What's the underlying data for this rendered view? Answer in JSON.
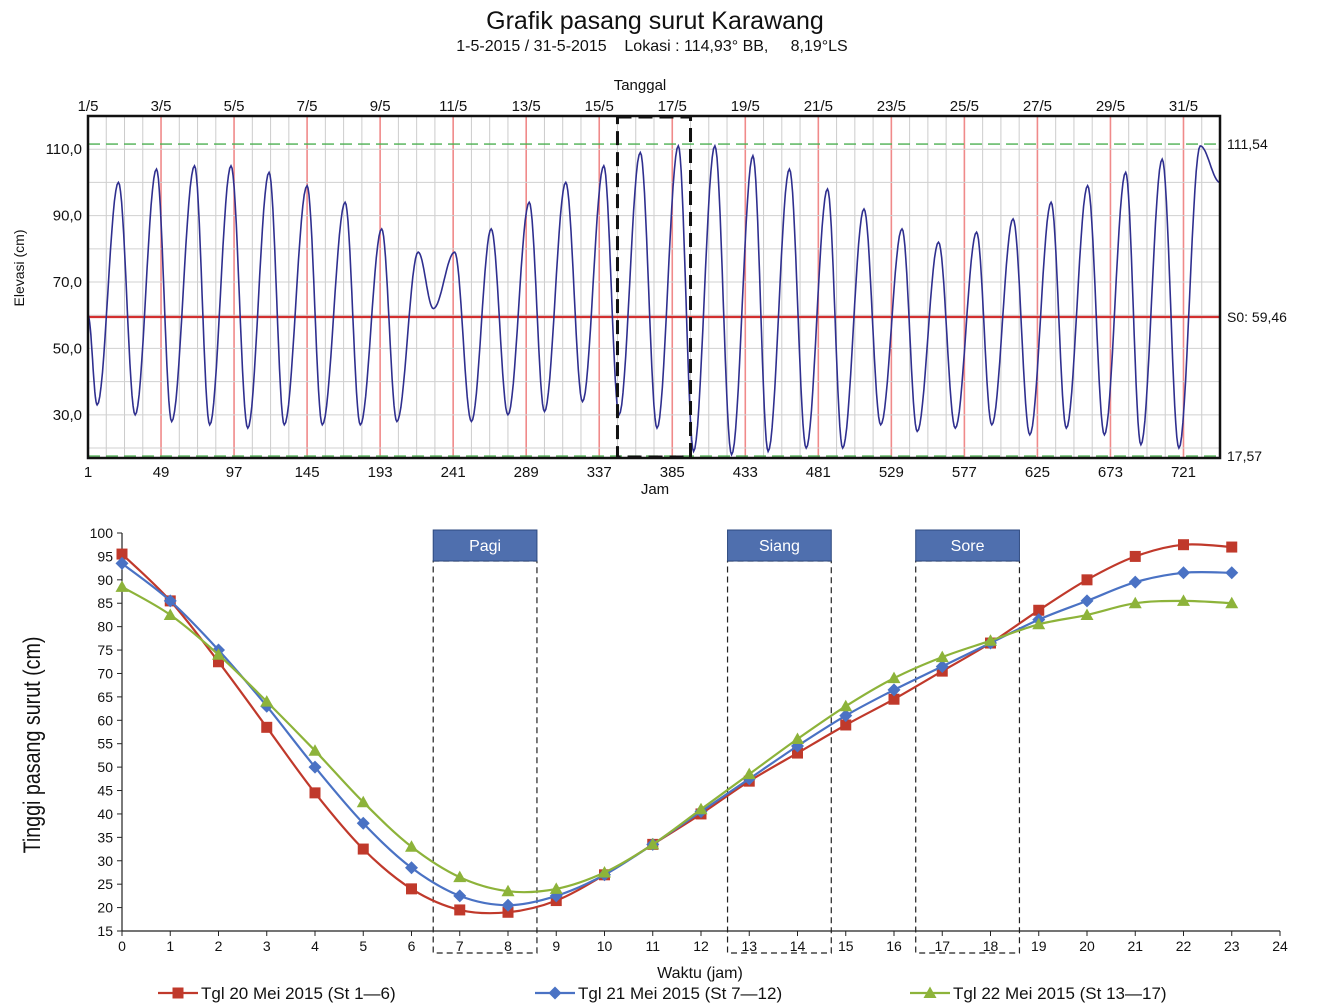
{
  "header": {
    "title": "Grafik pasang surut Karawang",
    "subtitle": "1-5-2015 / 31-5-2015    Lokasi : 114,93° BB,     8,19°LS"
  },
  "chart_data": [
    {
      "type": "line",
      "xlabel_top": "Tanggal",
      "xlabel": "Jam",
      "ylabel": "Elevasi (cm)",
      "top_ticks": [
        "1/5",
        "3/5",
        "5/5",
        "7/5",
        "9/5",
        "11/5",
        "13/5",
        "15/5",
        "17/5",
        "19/5",
        "21/5",
        "23/5",
        "25/5",
        "27/5",
        "29/5",
        "31/5"
      ],
      "x_ticks": [
        1,
        49,
        97,
        145,
        193,
        241,
        289,
        337,
        385,
        433,
        481,
        529,
        577,
        625,
        673,
        721
      ],
      "y_ticks": [
        "110,0",
        "90,0",
        "70,0",
        "50,0",
        "30,0"
      ],
      "y_tick_values": [
        110,
        90,
        70,
        50,
        30
      ],
      "xlim": [
        1,
        745
      ],
      "ylim": [
        17,
        120
      ],
      "reference_lines": [
        {
          "label": "111,54",
          "value": 111.54,
          "color": "#4caf50",
          "style": "dashed"
        },
        {
          "label": "S0: 59,46",
          "value": 59.46,
          "color": "#d32f2f",
          "style": "solid"
        },
        {
          "label": "17,57",
          "value": 17.57,
          "color": "#4caf50",
          "style": "dashed"
        }
      ],
      "highlight_window": {
        "x_start": 349,
        "x_end": 397
      },
      "series": [
        {
          "color": "#2f2f8f",
          "period_hours": 24.6,
          "extrema": [
            [
              1,
              60
            ],
            [
              7,
              33
            ],
            [
              21,
              100
            ],
            [
              32,
              30
            ],
            [
              46,
              104
            ],
            [
              56,
              28
            ],
            [
              71,
              105
            ],
            [
              81,
              27
            ],
            [
              95,
              105
            ],
            [
              106,
              26
            ],
            [
              120,
              103
            ],
            [
              130,
              27
            ],
            [
              145,
              99
            ],
            [
              155,
              27
            ],
            [
              170,
              94
            ],
            [
              180,
              27
            ],
            [
              194,
              86
            ],
            [
              204,
              28
            ],
            [
              218,
              79
            ],
            [
              228,
              62
            ],
            [
              242,
              79
            ],
            [
              253,
              28
            ],
            [
              266,
              86
            ],
            [
              277,
              30
            ],
            [
              291,
              94
            ],
            [
              301,
              31
            ],
            [
              315,
              100
            ],
            [
              326,
              34
            ],
            [
              340,
              105
            ],
            [
              350,
              30
            ],
            [
              364,
              109
            ],
            [
              375,
              26
            ],
            [
              389,
              111
            ],
            [
              399,
              19
            ],
            [
              413,
              111
            ],
            [
              424,
              18
            ],
            [
              438,
              108
            ],
            [
              448,
              19
            ],
            [
              462,
              104
            ],
            [
              473,
              20
            ],
            [
              487,
              98
            ],
            [
              497,
              20
            ],
            [
              511,
              92
            ],
            [
              522,
              27
            ],
            [
              536,
              86
            ],
            [
              546,
              25
            ],
            [
              560,
              82
            ],
            [
              571,
              26
            ],
            [
              585,
              85
            ],
            [
              595,
              27
            ],
            [
              609,
              89
            ],
            [
              620,
              24
            ],
            [
              634,
              94
            ],
            [
              644,
              26
            ],
            [
              658,
              99
            ],
            [
              669,
              24
            ],
            [
              683,
              103
            ],
            [
              693,
              21
            ],
            [
              707,
              107
            ],
            [
              718,
              20
            ],
            [
              732,
              111
            ],
            [
              745,
              100
            ]
          ]
        }
      ]
    },
    {
      "type": "line",
      "xlabel": "Waktu (jam)",
      "ylabel": "Tinggi pasang surut (cm)",
      "x": [
        0,
        1,
        2,
        3,
        4,
        5,
        6,
        7,
        8,
        9,
        10,
        11,
        12,
        13,
        14,
        15,
        16,
        17,
        18,
        19,
        20,
        21,
        22,
        23
      ],
      "x_ticks": [
        0,
        1,
        2,
        3,
        4,
        5,
        6,
        7,
        8,
        9,
        10,
        11,
        12,
        13,
        14,
        15,
        16,
        17,
        18,
        19,
        20,
        21,
        22,
        23,
        24
      ],
      "y_ticks": [
        "100",
        "95",
        "90",
        "85",
        "80",
        "75",
        "70",
        "65",
        "60",
        "55",
        "50",
        "45",
        "40",
        "35",
        "30",
        "25",
        "20",
        "15"
      ],
      "xlim": [
        0,
        24
      ],
      "ylim": [
        15,
        100
      ],
      "periods": [
        {
          "label": "Pagi",
          "x_start": 6.45,
          "x_end": 8.6
        },
        {
          "label": "Siang",
          "x_start": 12.55,
          "x_end": 14.7
        },
        {
          "label": "Sore",
          "x_start": 16.45,
          "x_end": 18.6
        }
      ],
      "series": [
        {
          "name": "Tgl 20 Mei 2015 (St 1—6)",
          "color": "#c0392b",
          "marker": "square",
          "values": [
            95.5,
            85.5,
            72.5,
            58.5,
            44.5,
            32.5,
            24,
            19.5,
            19,
            21.5,
            27,
            33.5,
            40,
            47,
            53,
            59,
            64.5,
            70.5,
            76.5,
            83.5,
            90,
            95,
            97.5,
            97
          ]
        },
        {
          "name": "Tgl 21 Mei 2015 (St 7—12)",
          "color": "#4a72c4",
          "marker": "diamond",
          "values": [
            93.5,
            85.5,
            75,
            63,
            50,
            38,
            28.5,
            22.5,
            20.5,
            22.5,
            27,
            33.5,
            40.5,
            47.5,
            54.5,
            61,
            66.5,
            71.5,
            76.5,
            81.5,
            85.5,
            89.5,
            91.5,
            91.5
          ]
        },
        {
          "name": "Tgl 22 Mei 2015 (St 13—17)",
          "color": "#8db33a",
          "marker": "triangle",
          "values": [
            88.5,
            82.5,
            74,
            64,
            53.5,
            42.5,
            33,
            26.5,
            23.5,
            24,
            27.5,
            33.5,
            41,
            48.5,
            56,
            63,
            69,
            73.5,
            77,
            80.5,
            82.5,
            85,
            85.5,
            85
          ]
        }
      ]
    }
  ]
}
